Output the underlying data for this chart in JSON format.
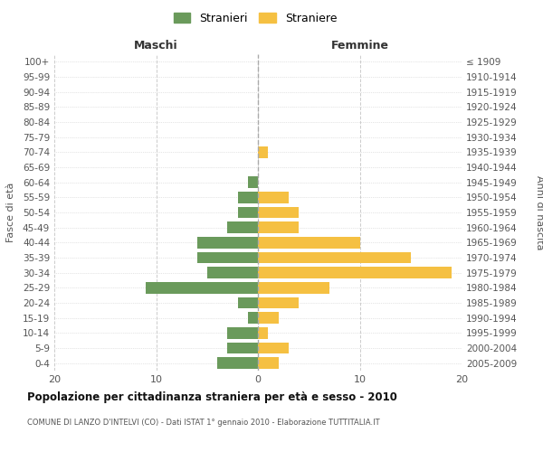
{
  "age_groups": [
    "100+",
    "95-99",
    "90-94",
    "85-89",
    "80-84",
    "75-79",
    "70-74",
    "65-69",
    "60-64",
    "55-59",
    "50-54",
    "45-49",
    "40-44",
    "35-39",
    "30-34",
    "25-29",
    "20-24",
    "15-19",
    "10-14",
    "5-9",
    "0-4"
  ],
  "birth_years": [
    "≤ 1909",
    "1910-1914",
    "1915-1919",
    "1920-1924",
    "1925-1929",
    "1930-1934",
    "1935-1939",
    "1940-1944",
    "1945-1949",
    "1950-1954",
    "1955-1959",
    "1960-1964",
    "1965-1969",
    "1970-1974",
    "1975-1979",
    "1980-1984",
    "1985-1989",
    "1990-1994",
    "1995-1999",
    "2000-2004",
    "2005-2009"
  ],
  "maschi": [
    0,
    0,
    0,
    0,
    0,
    0,
    0,
    0,
    1,
    2,
    2,
    3,
    6,
    6,
    5,
    11,
    2,
    1,
    3,
    3,
    4
  ],
  "femmine": [
    0,
    0,
    0,
    0,
    0,
    0,
    1,
    0,
    0,
    3,
    4,
    4,
    10,
    15,
    19,
    7,
    4,
    2,
    1,
    3,
    2
  ],
  "maschi_color": "#6a9a5b",
  "femmine_color": "#f5c042",
  "title": "Popolazione per cittadinanza straniera per età e sesso - 2010",
  "subtitle": "COMUNE DI LANZO D'INTELVI (CO) - Dati ISTAT 1° gennaio 2010 - Elaborazione TUTTITALIA.IT",
  "ylabel_left": "Fasce di età",
  "ylabel_right": "Anni di nascita",
  "xlabel_left": "Maschi",
  "xlabel_right": "Femmine",
  "legend_maschi": "Stranieri",
  "legend_femmine": "Straniere",
  "xlim": 20,
  "background_color": "#ffffff",
  "grid_color": "#cccccc"
}
